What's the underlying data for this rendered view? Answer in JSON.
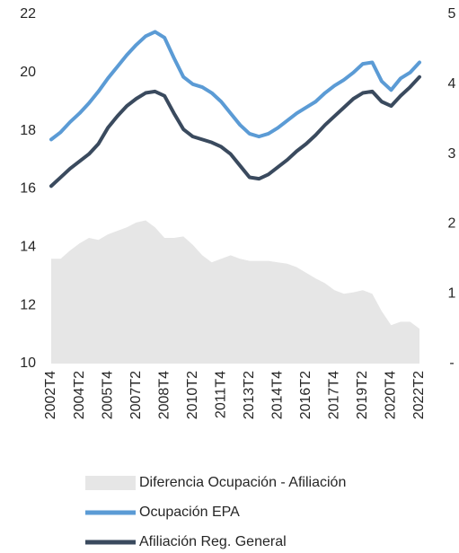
{
  "chart_data": {
    "type": "line",
    "categories": [
      "2002T4",
      null,
      null,
      "2004T2",
      null,
      null,
      "2005T4",
      null,
      null,
      "2007T2",
      null,
      null,
      "2008T4",
      null,
      null,
      "2010T2",
      null,
      null,
      "2011T4",
      null,
      null,
      "2013T2",
      null,
      null,
      "2014T4",
      null,
      null,
      "2016T2",
      null,
      null,
      "2017T4",
      null,
      null,
      "2019T2",
      null,
      null,
      "2020T4",
      null,
      null,
      "2022T2"
    ],
    "series": [
      {
        "name": "Diferencia Ocupación - Afiliación",
        "color": "#e6e6e6",
        "axis": "y2",
        "kind": "area",
        "values": [
          1.5,
          1.5,
          1.62,
          1.72,
          1.8,
          1.77,
          1.85,
          1.9,
          1.95,
          2.02,
          2.05,
          1.95,
          1.8,
          1.8,
          1.82,
          1.7,
          1.55,
          1.45,
          1.5,
          1.55,
          1.5,
          1.47,
          1.47,
          1.47,
          1.45,
          1.43,
          1.38,
          1.3,
          1.22,
          1.15,
          1.05,
          1.0,
          1.02,
          1.05,
          1.0,
          0.75,
          0.55,
          0.6,
          0.6,
          0.5
        ]
      },
      {
        "name": "Ocupación EPA",
        "color": "#5b9bd5",
        "values": [
          17.7,
          17.95,
          18.3,
          18.6,
          18.95,
          19.35,
          19.8,
          20.2,
          20.6,
          20.95,
          21.25,
          21.4,
          21.2,
          20.5,
          19.85,
          19.6,
          19.5,
          19.3,
          19.0,
          18.6,
          18.2,
          17.9,
          17.8,
          17.9,
          18.1,
          18.35,
          18.6,
          18.8,
          19.0,
          19.3,
          19.55,
          19.75,
          20.0,
          20.3,
          20.35,
          19.7,
          19.4,
          19.8,
          20.0,
          20.35
        ]
      },
      {
        "name": "Afiliación Reg. General",
        "color": "#3a4a5e",
        "values": [
          16.1,
          16.4,
          16.7,
          16.95,
          17.2,
          17.55,
          18.1,
          18.5,
          18.85,
          19.1,
          19.3,
          19.35,
          19.2,
          18.6,
          18.05,
          17.8,
          17.7,
          17.6,
          17.45,
          17.2,
          16.8,
          16.4,
          16.35,
          16.5,
          16.75,
          17.0,
          17.3,
          17.55,
          17.85,
          18.2,
          18.5,
          18.8,
          19.1,
          19.3,
          19.35,
          19.0,
          18.85,
          19.2,
          19.5,
          19.85
        ]
      }
    ],
    "ylim": [
      10,
      22
    ],
    "yticks": [
      10,
      12,
      14,
      16,
      18,
      20,
      22
    ],
    "y2lim": [
      0,
      5
    ],
    "y2ticks": [
      {
        "value": 0,
        "label": "-"
      },
      1,
      2,
      3,
      4,
      5
    ],
    "legend": "bottom"
  }
}
